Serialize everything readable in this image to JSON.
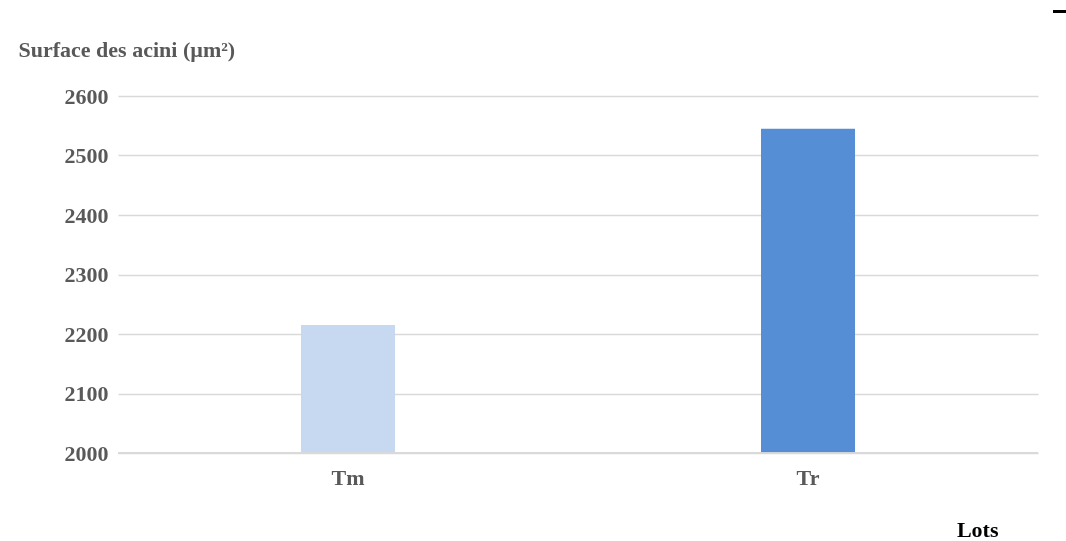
{
  "chart_data": {
    "type": "bar",
    "ylabel": "Surface des acini  (µm²)",
    "xlabel": "Lots",
    "categories": [
      "Tm",
      "Tr"
    ],
    "values": [
      2215,
      2545
    ],
    "colors": [
      "#c6d9f1",
      "#558ed5"
    ],
    "ylim": [
      2000,
      2600
    ],
    "yticks": [
      2000,
      2100,
      2200,
      2300,
      2400,
      2500,
      2600
    ],
    "grid": "y"
  }
}
